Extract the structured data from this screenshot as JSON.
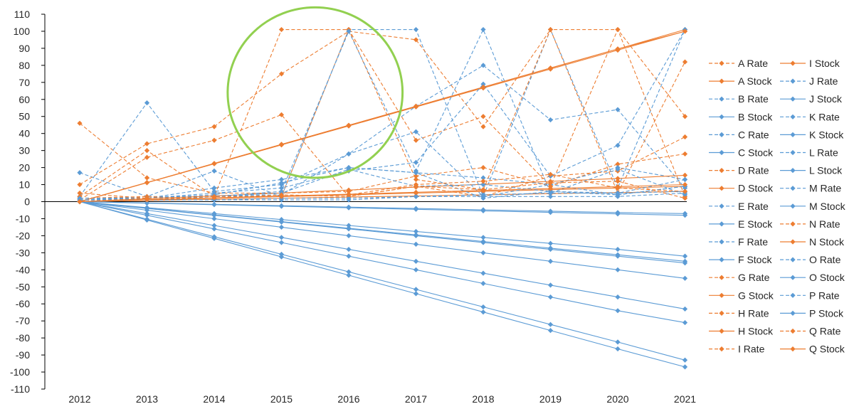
{
  "chart_data": {
    "type": "line",
    "title": "",
    "xlabel": "",
    "ylabel": "",
    "x": [
      "2012",
      "2013",
      "2014",
      "2015",
      "2016",
      "2017",
      "2018",
      "2019",
      "2020",
      "2021"
    ],
    "ylim": [
      -110,
      110
    ],
    "yticks": [
      110,
      100,
      90,
      80,
      70,
      60,
      50,
      40,
      30,
      20,
      10,
      0,
      -10,
      -20,
      -30,
      -40,
      -50,
      -60,
      -70,
      -80,
      -90,
      -100,
      -110
    ],
    "grid": false,
    "legend": "right",
    "colors": {
      "orange": "#ED7D31",
      "blue": "#5B9BD5",
      "highlight_circle": "#92D050"
    },
    "series": [
      {
        "name": "A Rate",
        "color": "orange",
        "dash": true,
        "values": [
          46,
          14,
          5,
          5,
          6,
          15,
          20,
          9,
          22,
          28
        ]
      },
      {
        "name": "A Stock",
        "color": "orange",
        "dash": false,
        "values": [
          0,
          1,
          2,
          3,
          4,
          5,
          6,
          7,
          8,
          9
        ]
      },
      {
        "name": "B Rate",
        "color": "blue",
        "dash": true,
        "values": [
          17,
          3,
          18,
          3,
          101,
          101,
          3,
          101,
          8,
          101
        ]
      },
      {
        "name": "B Stock",
        "color": "blue",
        "dash": false,
        "values": [
          0,
          -3.5,
          -7,
          -10.5,
          -14,
          -17.5,
          -21,
          -24.5,
          -28,
          -32
        ]
      },
      {
        "name": "C Rate",
        "color": "blue",
        "dash": true,
        "values": [
          3,
          58,
          6,
          10,
          28,
          56,
          80,
          48,
          54,
          8
        ]
      },
      {
        "name": "C Stock",
        "color": "blue",
        "dash": false,
        "values": [
          0,
          -4,
          -8,
          -12,
          -16,
          -20,
          -24,
          -28,
          -32,
          -36
        ]
      },
      {
        "name": "D Rate",
        "color": "orange",
        "dash": true,
        "values": [
          10,
          34,
          44,
          75,
          100,
          95,
          44,
          101,
          5,
          82
        ]
      },
      {
        "name": "D Stock",
        "color": "orange",
        "dash": false,
        "values": [
          0,
          11.1,
          22.2,
          33.3,
          44.4,
          55.6,
          66.7,
          77.8,
          88.9,
          100
        ]
      },
      {
        "name": "E Rate",
        "color": "blue",
        "dash": true,
        "values": [
          2,
          2,
          8,
          13,
          20,
          17,
          14,
          10,
          20,
          13
        ]
      },
      {
        "name": "E Stock",
        "color": "blue",
        "dash": false,
        "values": [
          0,
          -0.8,
          -1.6,
          -2.4,
          -3.2,
          -4,
          -4.8,
          -5.6,
          -6.4,
          -7
        ]
      },
      {
        "name": "F Rate",
        "color": "blue",
        "dash": true,
        "values": [
          1,
          3,
          3,
          4,
          28,
          41,
          3,
          10,
          4,
          9
        ]
      },
      {
        "name": "F Stock",
        "color": "blue",
        "dash": false,
        "values": [
          0,
          -5,
          -10,
          -15,
          -20,
          -25,
          -30,
          -35,
          -40,
          -45
        ]
      },
      {
        "name": "G Rate",
        "color": "orange",
        "dash": true,
        "values": [
          1,
          26,
          36,
          51,
          3,
          9,
          3,
          15,
          18,
          38
        ]
      },
      {
        "name": "G Stock",
        "color": "orange",
        "dash": false,
        "values": [
          0,
          1.7,
          3.4,
          5.1,
          6.8,
          8.5,
          10.2,
          11.9,
          13.6,
          15.5
        ]
      },
      {
        "name": "H Rate",
        "color": "orange",
        "dash": true,
        "values": [
          3,
          30,
          3,
          101,
          101,
          36,
          50,
          9,
          101,
          50
        ]
      },
      {
        "name": "H Stock",
        "color": "orange",
        "dash": false,
        "values": [
          0,
          11.2,
          22.4,
          33.6,
          44.8,
          56,
          67.2,
          78.4,
          89.6,
          101
        ]
      },
      {
        "name": "I Rate",
        "color": "orange",
        "dash": true,
        "values": [
          2,
          3,
          2,
          3,
          101,
          13,
          7,
          101,
          101,
          3
        ]
      },
      {
        "name": "I Stock",
        "color": "orange",
        "dash": false,
        "values": [
          0,
          0.7,
          1.3,
          2,
          2.7,
          3.3,
          4,
          4.7,
          5.3,
          6
        ]
      },
      {
        "name": "J Rate",
        "color": "blue",
        "dash": true,
        "values": [
          1,
          2,
          5,
          8,
          18,
          23,
          69,
          15,
          33,
          101
        ]
      },
      {
        "name": "J Stock",
        "color": "blue",
        "dash": false,
        "values": [
          0,
          -7,
          -14,
          -21,
          -28,
          -35,
          -42,
          -49,
          -56,
          -63
        ]
      },
      {
        "name": "K Rate",
        "color": "blue",
        "dash": true,
        "values": [
          2,
          2,
          3,
          5,
          19,
          9,
          10,
          6,
          5,
          6
        ]
      },
      {
        "name": "K Stock",
        "color": "blue",
        "dash": false,
        "values": [
          0,
          -10.3,
          -20.6,
          -30.9,
          -41.2,
          -51.5,
          -61.8,
          -72.1,
          -82.4,
          -93
        ]
      },
      {
        "name": "L Rate",
        "color": "blue",
        "dash": true,
        "values": [
          1,
          1,
          3,
          6,
          100,
          18,
          101,
          5,
          19,
          4
        ]
      },
      {
        "name": "L Stock",
        "color": "blue",
        "dash": false,
        "values": [
          0,
          -8,
          -16,
          -24,
          -32,
          -40,
          -48,
          -56,
          -64,
          -71
        ]
      },
      {
        "name": "M Rate",
        "color": "blue",
        "dash": true,
        "values": [
          1,
          2,
          4,
          11,
          20,
          17,
          2,
          6,
          4,
          9
        ]
      },
      {
        "name": "M Stock",
        "color": "blue",
        "dash": false,
        "values": [
          0,
          -10.8,
          -21.6,
          -32.4,
          -43.2,
          -54,
          -64.8,
          -75.6,
          -86.4,
          -97
        ]
      },
      {
        "name": "N Rate",
        "color": "orange",
        "dash": true,
        "values": [
          5,
          2,
          2,
          4,
          3,
          9,
          7,
          11,
          12,
          2
        ]
      },
      {
        "name": "N Stock",
        "color": "orange",
        "dash": false,
        "values": [
          0,
          11.2,
          22.4,
          33.6,
          44.8,
          56,
          67.2,
          78.4,
          89.6,
          100
        ]
      },
      {
        "name": "O Rate",
        "color": "blue",
        "dash": true,
        "values": [
          1,
          1,
          1,
          1,
          1,
          3,
          3,
          3,
          3,
          5
        ]
      },
      {
        "name": "O Stock",
        "color": "blue",
        "dash": false,
        "values": [
          0,
          -0.9,
          -1.8,
          -2.7,
          -3.6,
          -4.5,
          -5.4,
          -6.3,
          -7.2,
          -8
        ]
      },
      {
        "name": "P Rate",
        "color": "blue",
        "dash": true,
        "values": [
          0,
          1,
          1,
          2,
          2,
          3,
          4,
          5,
          5,
          13
        ]
      },
      {
        "name": "P Stock",
        "color": "blue",
        "dash": false,
        "values": [
          0,
          -3.9,
          -7.8,
          -11.7,
          -15.6,
          -19.5,
          -23.4,
          -27.3,
          -31.2,
          -35
        ]
      },
      {
        "name": "Q Rate",
        "color": "orange",
        "dash": true,
        "values": [
          0,
          2,
          3,
          3,
          4,
          10,
          12,
          16,
          8,
          6
        ]
      },
      {
        "name": "Q Stock",
        "color": "orange",
        "dash": false,
        "values": [
          0,
          1.1,
          2.2,
          3.3,
          4.4,
          5.5,
          6.6,
          7.7,
          8.8,
          10
        ]
      }
    ],
    "annotations": [
      {
        "type": "circle",
        "color": "highlight_circle",
        "center_x": "2015.5",
        "center_y": 64,
        "rx_years": 1.3,
        "ry_units": 50
      }
    ]
  }
}
